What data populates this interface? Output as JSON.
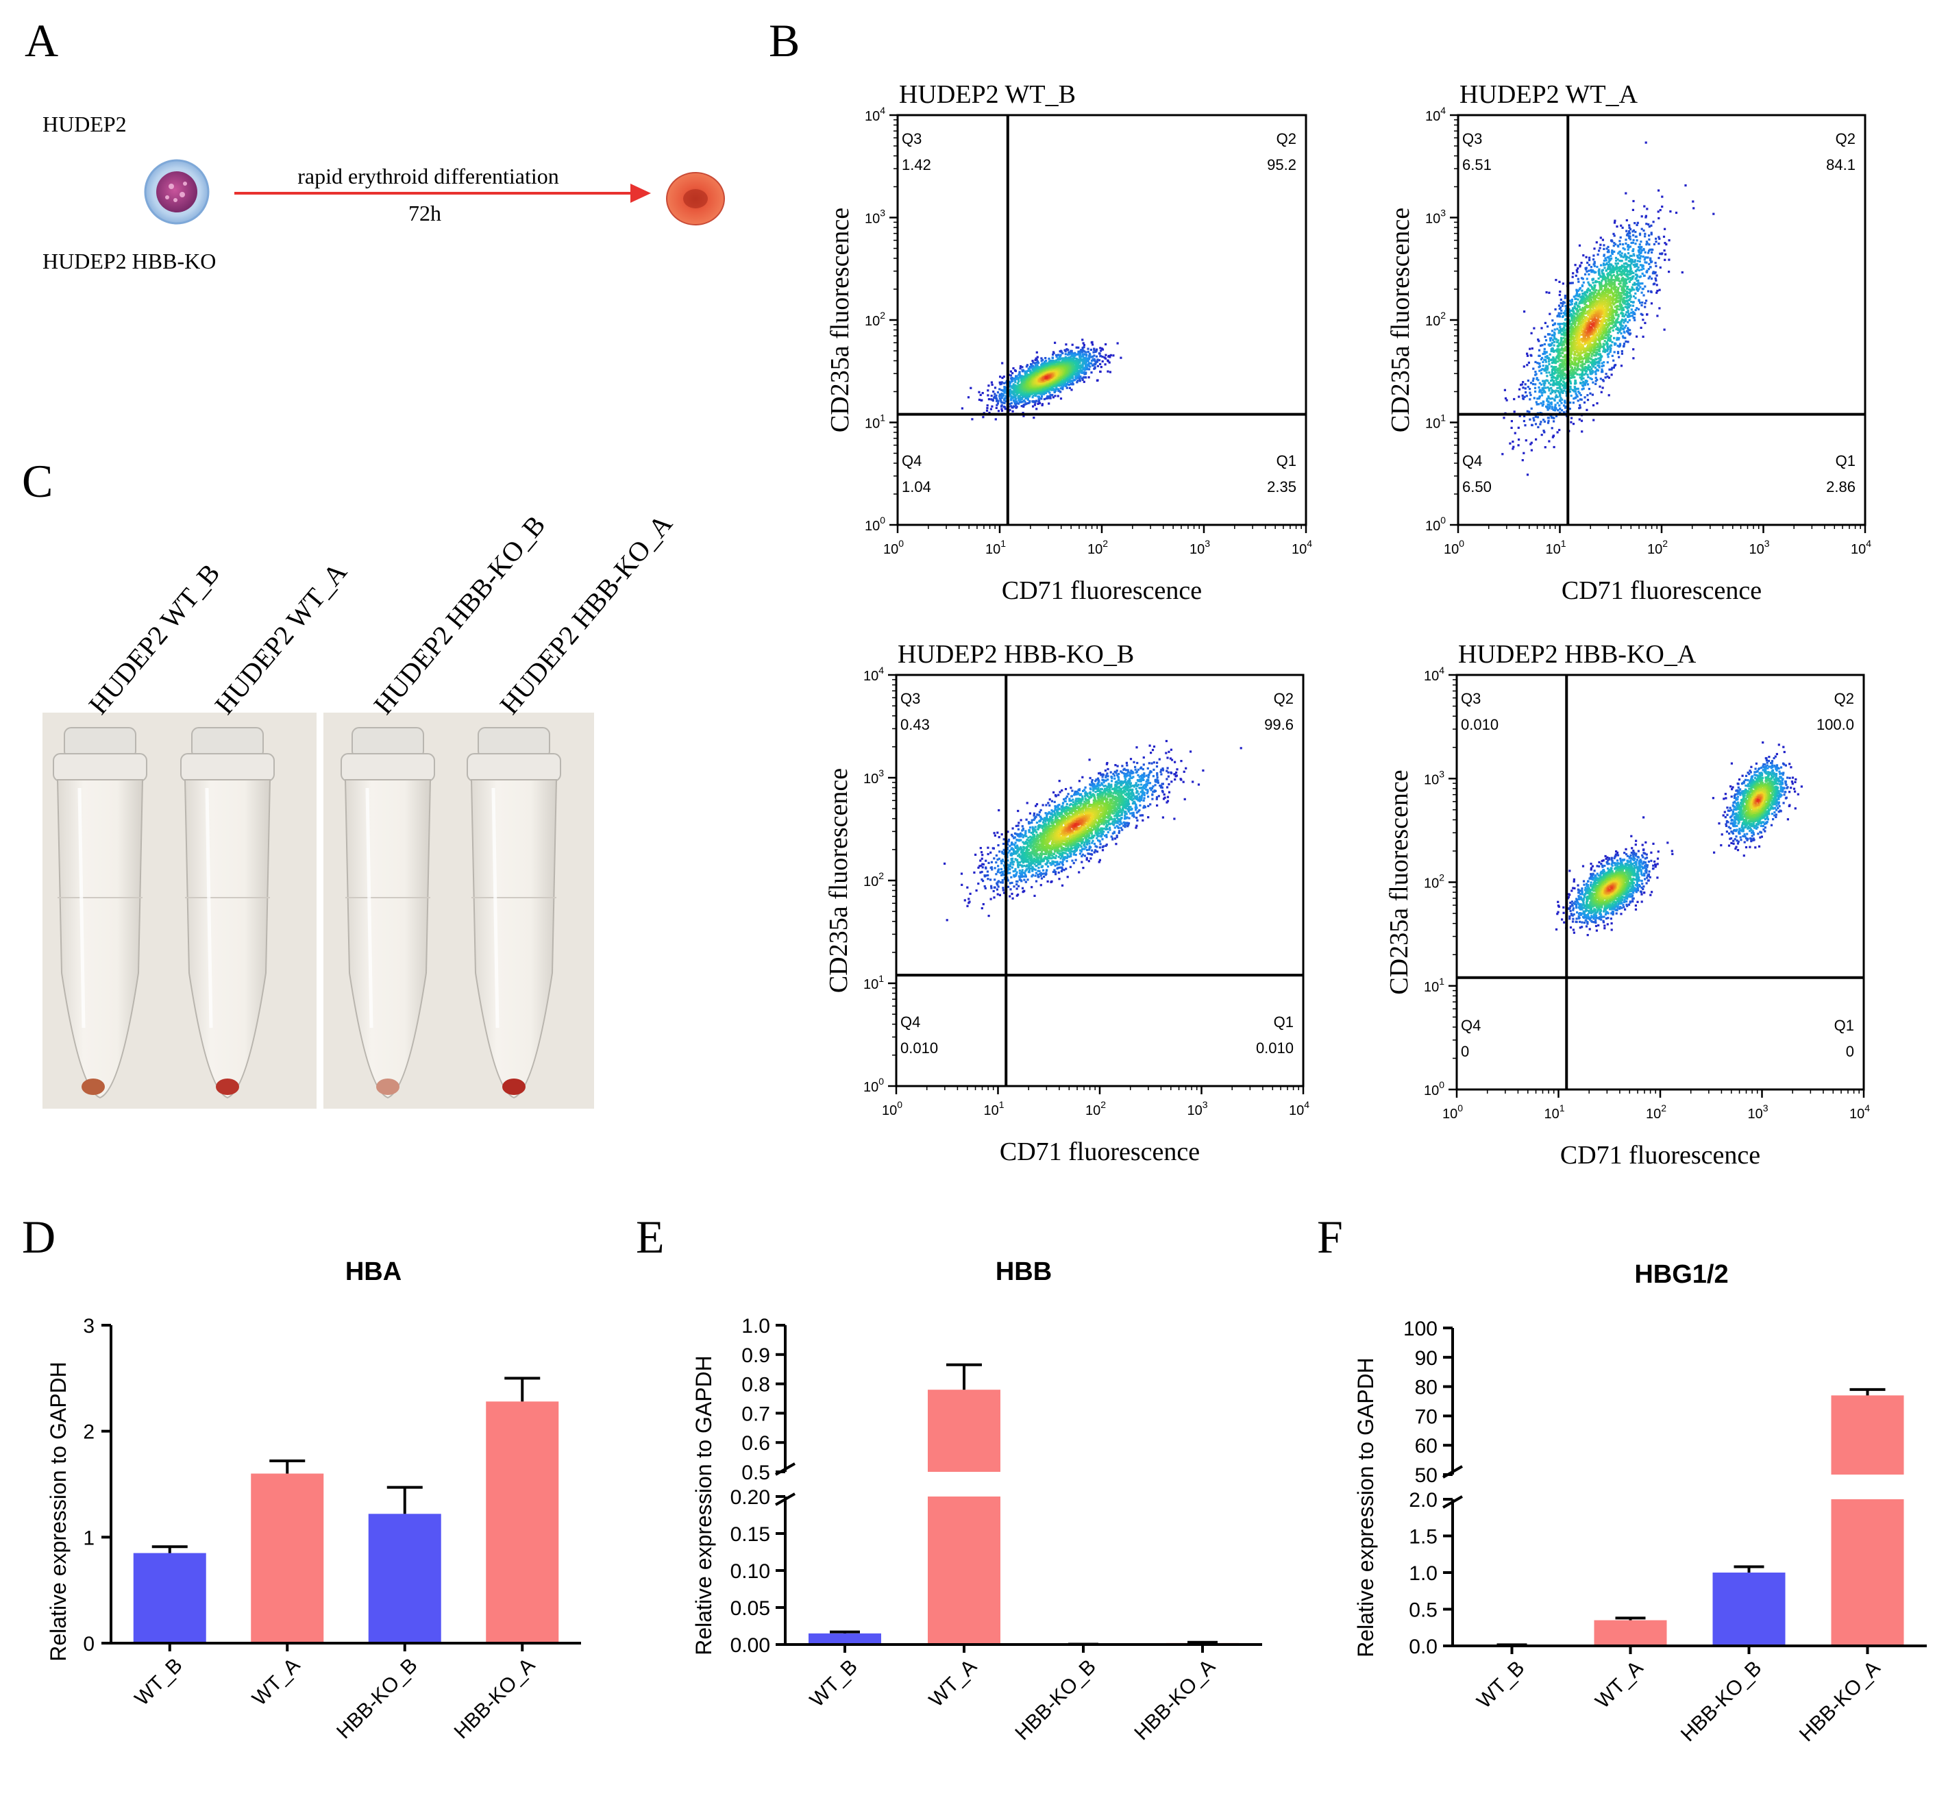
{
  "colors": {
    "wt": "#fa7f7f",
    "ko": "#5656f5",
    "arrow": "#e8322f",
    "axis": "#000000"
  },
  "panels": {
    "a": {
      "letter": "A",
      "top_label": "HUDEP2",
      "bottom_label": "HUDEP2 HBB-KO",
      "arrow_label": "rapid erythroid differentiation",
      "time_label": "72h"
    },
    "b": {
      "letter": "B"
    },
    "c": {
      "letter": "C",
      "tube_labels": [
        "HUDEP2 WT_B",
        "HUDEP2 WT_A",
        "HUDEP2 HBB-KO_B",
        "HUDEP2 HBB-KO_A"
      ],
      "pellet_colors": [
        "#b9603d",
        "#b8342a",
        "#cf8f7c",
        "#b22a22"
      ]
    },
    "d": {
      "letter": "D"
    },
    "e": {
      "letter": "E"
    },
    "f": {
      "letter": "F"
    }
  },
  "chart_data": [
    {
      "type": "scatter",
      "id": "flow1",
      "title": "HUDEP2 WT_B",
      "xlabel": "CD71 fluorescence",
      "ylabel": "CD235a fluorescence",
      "scale": "log10",
      "xlim": [
        1,
        10000
      ],
      "ylim": [
        1,
        10000
      ],
      "gate": {
        "x": 12,
        "y": 12
      },
      "quadrants": {
        "Q1": "2.35",
        "Q2": "95.2",
        "Q3": "1.42",
        "Q4": "1.04"
      },
      "clusters": [
        {
          "cx_log": 1.45,
          "cy_log": 1.45,
          "sx": 0.22,
          "sy": 0.12,
          "corr": 0.7,
          "n": 2600
        }
      ]
    },
    {
      "type": "scatter",
      "id": "flow2",
      "title": "HUDEP2 WT_A",
      "xlabel": "CD71 fluorescence",
      "ylabel": "CD235a fluorescence",
      "scale": "log10",
      "xlim": [
        1,
        10000
      ],
      "ylim": [
        1,
        10000
      ],
      "gate": {
        "x": 12,
        "y": 12
      },
      "quadrants": {
        "Q1": "2.86",
        "Q2": "84.1",
        "Q3": "6.51",
        "Q4": "6.50"
      },
      "clusters": [
        {
          "cx_log": 1.3,
          "cy_log": 1.95,
          "sx": 0.28,
          "sy": 0.42,
          "corr": 0.75,
          "n": 3400
        }
      ]
    },
    {
      "type": "scatter",
      "id": "flow3",
      "title": "HUDEP2 HBB-KO_B",
      "xlabel": "CD71 fluorescence",
      "ylabel": "CD235a fluorescence",
      "scale": "log10",
      "xlim": [
        1,
        10000
      ],
      "ylim": [
        1,
        10000
      ],
      "gate": {
        "x": 12,
        "y": 12
      },
      "quadrants": {
        "Q1": "0.010",
        "Q2": "99.6",
        "Q3": "0.43",
        "Q4": "0.010"
      },
      "clusters": [
        {
          "cx_log": 1.75,
          "cy_log": 2.55,
          "sx": 0.38,
          "sy": 0.26,
          "corr": 0.8,
          "n": 3600
        }
      ]
    },
    {
      "type": "scatter",
      "id": "flow4",
      "title": "HUDEP2 HBB-KO_A",
      "xlabel": "CD71 fluorescence",
      "ylabel": "CD235a fluorescence",
      "scale": "log10",
      "xlim": [
        1,
        10000
      ],
      "ylim": [
        1,
        10000
      ],
      "gate": {
        "x": 12,
        "y": 12
      },
      "quadrants": {
        "Q1": "0",
        "Q2": "100.0",
        "Q3": "0.010",
        "Q4": "0"
      },
      "clusters": [
        {
          "cx_log": 1.5,
          "cy_log": 1.95,
          "sx": 0.17,
          "sy": 0.15,
          "corr": 0.6,
          "n": 1900
        },
        {
          "cx_log": 2.95,
          "cy_log": 2.8,
          "sx": 0.13,
          "sy": 0.17,
          "corr": 0.5,
          "n": 1500
        }
      ]
    },
    {
      "type": "bar",
      "id": "hba",
      "title": "HBA",
      "ylabel": "Relative expression to GAPDH",
      "categories": [
        "WT_B",
        "WT_A",
        "HBB-KO_B",
        "HBB-KO_A"
      ],
      "values": [
        0.85,
        1.6,
        1.22,
        2.28
      ],
      "errors": [
        0.06,
        0.12,
        0.25,
        0.22
      ],
      "bar_colors": [
        "ko",
        "wt",
        "ko",
        "wt"
      ],
      "ylim": [
        0,
        3
      ],
      "yticks": [
        "0",
        "1",
        "2",
        "3"
      ]
    },
    {
      "type": "bar",
      "id": "hbb",
      "title": "HBB",
      "ylabel": "Relative expression to GAPDH",
      "categories": [
        "WT_B",
        "WT_A",
        "HBB-KO_B",
        "HBB-KO_A"
      ],
      "values": [
        0.015,
        0.78,
        0.0,
        0.002
      ],
      "errors": [
        0.002,
        0.085,
        0.0,
        0.001
      ],
      "bar_colors": [
        "ko",
        "wt",
        "ko",
        "wt"
      ],
      "broken_axis": {
        "lower": [
          0,
          0.2
        ],
        "upper": [
          0.5,
          1.0
        ]
      },
      "yticks_lower": [
        "0.00",
        "0.05",
        "0.10",
        "0.15",
        "0.20"
      ],
      "yticks_upper": [
        "0.5",
        "0.6",
        "0.7",
        "0.8",
        "0.9",
        "1.0"
      ]
    },
    {
      "type": "bar",
      "id": "hbg",
      "title": "HBG1/2",
      "ylabel": "Relative expression to GAPDH",
      "categories": [
        "WT_B",
        "WT_A",
        "HBB-KO_B",
        "HBB-KO_A"
      ],
      "values": [
        0.01,
        0.35,
        1.0,
        77
      ],
      "errors": [
        0.005,
        0.03,
        0.08,
        2
      ],
      "bar_colors": [
        "ko",
        "wt",
        "ko",
        "wt"
      ],
      "broken_axis": {
        "lower": [
          0,
          2
        ],
        "upper": [
          50,
          100
        ]
      },
      "yticks_lower": [
        "0.0",
        "0.5",
        "1.0",
        "1.5",
        "2.0"
      ],
      "yticks_upper": [
        "50",
        "60",
        "70",
        "80",
        "90",
        "100"
      ]
    }
  ]
}
